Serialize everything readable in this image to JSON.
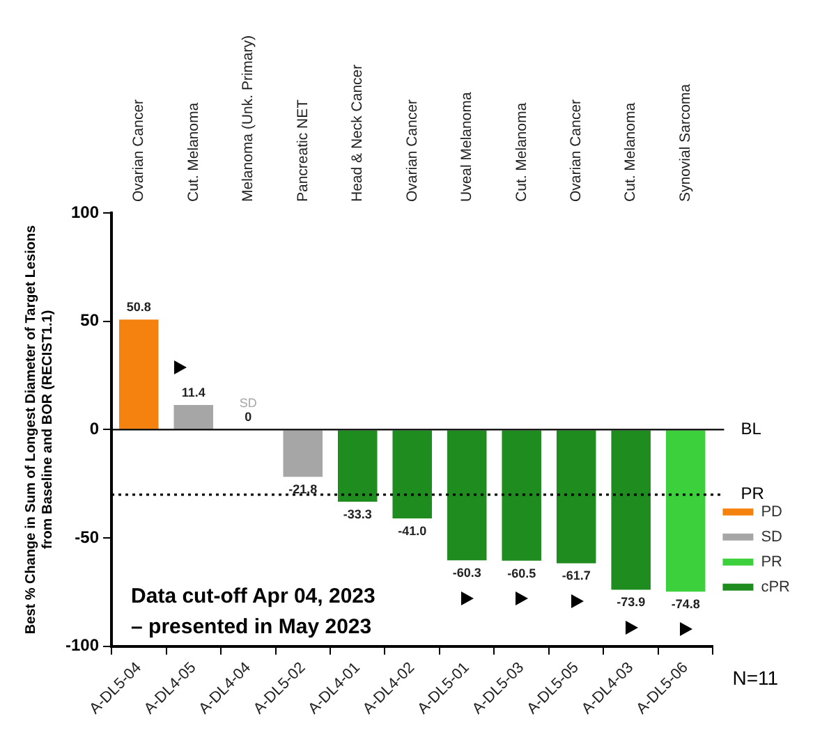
{
  "chart_data": {
    "type": "bar",
    "ylabel": "Best % Change in Sum of Longest Diameter of Target Lesions\nfrom Baseline and BOR (RECIST1.1)",
    "categories": [
      "A-DL5-04",
      "A-DL4-05",
      "A-DL4-04",
      "A-DL5-02",
      "A-DL4-01",
      "A-DL4-02",
      "A-DL5-01",
      "A-DL5-03",
      "A-DL5-05",
      "A-DL4-03",
      "A-DL5-06"
    ],
    "series": [
      {
        "name": "PD",
        "color": "#f5820f",
        "values": [
          50.8,
          null,
          null,
          null,
          null,
          null,
          null,
          null,
          null,
          null,
          null
        ],
        "value_labels": [
          "50.8",
          null,
          null,
          null,
          null,
          null,
          null,
          null,
          null,
          null,
          null
        ]
      },
      {
        "name": "SD",
        "color": "#a6a6a6",
        "values": [
          null,
          11.4,
          0,
          -21.8,
          null,
          null,
          null,
          null,
          null,
          null,
          null
        ],
        "value_labels": [
          null,
          "11.4",
          "0",
          "-21.8",
          null,
          null,
          null,
          null,
          null,
          null,
          null
        ]
      },
      {
        "name": "PR",
        "color": "#3dd03d",
        "values": [
          null,
          null,
          null,
          null,
          null,
          null,
          null,
          null,
          null,
          null,
          -74.8
        ],
        "value_labels": [
          null,
          null,
          null,
          null,
          null,
          null,
          null,
          null,
          null,
          null,
          "-74.8"
        ]
      },
      {
        "name": "cPR",
        "color": "#1f8c1f",
        "values": [
          null,
          null,
          null,
          null,
          -33.3,
          -41.0,
          -60.3,
          -60.5,
          -61.7,
          -73.9,
          null
        ],
        "value_labels": [
          null,
          null,
          null,
          null,
          "-33.3",
          "-41.0",
          "-60.3",
          "-60.5",
          "-61.7",
          "-73.9",
          null
        ]
      }
    ],
    "stacked": true,
    "ylim": [
      -100,
      100
    ],
    "yticks": [
      -100,
      -50,
      0,
      50,
      100
    ],
    "grid": false,
    "legend": "bottom right",
    "ref_lines": [
      {
        "axis": "y",
        "value": 0,
        "label": "BL",
        "color": "#000000",
        "line_style": "solid"
      },
      {
        "axis": "y",
        "value": -30,
        "label": "PR",
        "color": "#000000",
        "line_style": "dotted"
      }
    ],
    "annotations": [
      "Data cut-off Apr 04, 2023\n– presented in May 2023",
      "N=11",
      {
        "text": "SD",
        "x": "A-DL4-04",
        "y": 0
      },
      "Ovarian Cancer",
      "Cut. Melanoma",
      "Melanoma (Unk. Primary)",
      "Pancreatic NET",
      "Head & Neck Cancer",
      "Ovarian Cancer",
      "Uveal Melanoma",
      "Cut. Melanoma",
      "Ovarian Cancer",
      "Cut. Melanoma",
      "Synovial Sarcoma"
    ]
  }
}
